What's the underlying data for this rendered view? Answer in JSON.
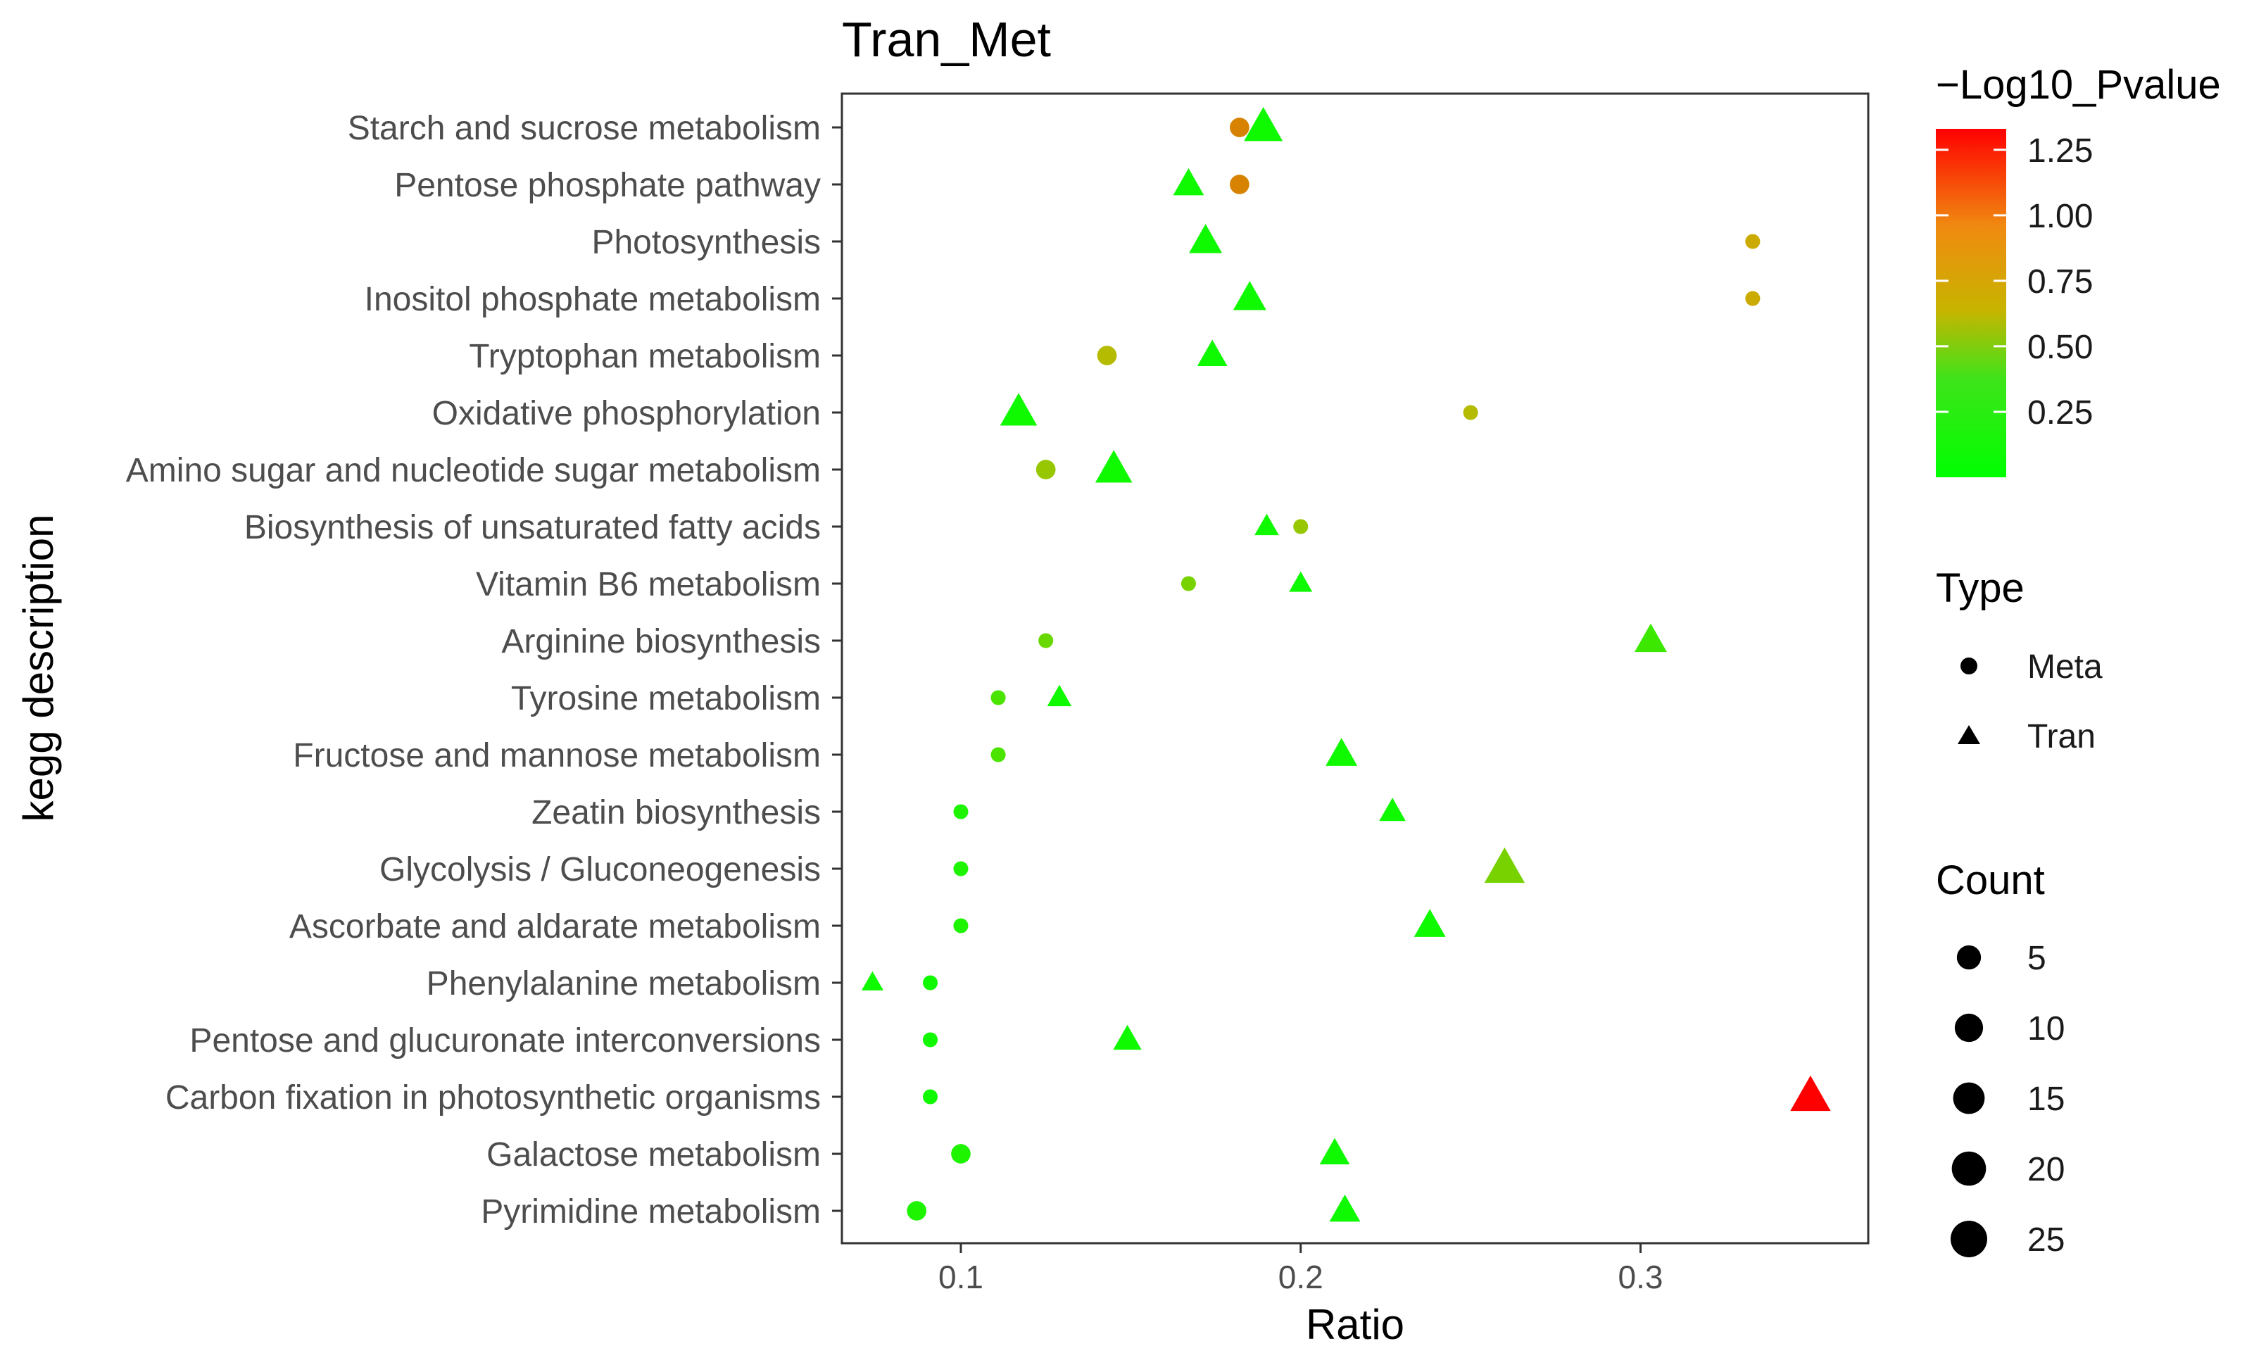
{
  "chart_data": {
    "type": "scatter",
    "title": "Tran_Met",
    "xlabel": "Ratio",
    "ylabel": "kegg description",
    "xlim": [
      0.065,
      0.367
    ],
    "xticks": [
      0.1,
      0.2,
      0.3
    ],
    "xtick_labels": [
      "0.1",
      "0.2",
      "0.3"
    ],
    "grid": false,
    "categories": [
      "Starch and sucrose metabolism",
      "Pentose phosphate pathway",
      "Photosynthesis",
      "Inositol phosphate metabolism",
      "Tryptophan metabolism",
      "Oxidative phosphorylation",
      "Amino sugar and nucleotide sugar metabolism",
      "Biosynthesis of unsaturated fatty acids",
      "Vitamin B6 metabolism",
      "Arginine biosynthesis",
      "Tyrosine metabolism",
      "Fructose and mannose metabolism",
      "Zeatin biosynthesis",
      "Glycolysis / Gluconeogenesis",
      "Ascorbate and aldarate metabolism",
      "Phenylalanine metabolism",
      "Pentose and glucuronate interconversions",
      "Carbon fixation in photosynthetic organisms",
      "Galactose metabolism",
      "Pyrimidine metabolism"
    ],
    "series": [
      {
        "name": "Meta",
        "shape": "circle",
        "points": [
          {
            "category": "Starch and sucrose metabolism",
            "ratio": 0.182,
            "count": 6,
            "neg_log10_pvalue": 0.85
          },
          {
            "category": "Pentose phosphate pathway",
            "ratio": 0.182,
            "count": 6,
            "neg_log10_pvalue": 0.85
          },
          {
            "category": "Photosynthesis",
            "ratio": 0.333,
            "count": 2,
            "neg_log10_pvalue": 0.7
          },
          {
            "category": "Inositol phosphate metabolism",
            "ratio": 0.333,
            "count": 2,
            "neg_log10_pvalue": 0.7
          },
          {
            "category": "Tryptophan metabolism",
            "ratio": 0.143,
            "count": 6,
            "neg_log10_pvalue": 0.6
          },
          {
            "category": "Oxidative phosphorylation",
            "ratio": 0.25,
            "count": 2,
            "neg_log10_pvalue": 0.6
          },
          {
            "category": "Amino sugar and nucleotide sugar metabolism",
            "ratio": 0.125,
            "count": 6,
            "neg_log10_pvalue": 0.5
          },
          {
            "category": "Biosynthesis of unsaturated fatty acids",
            "ratio": 0.2,
            "count": 2,
            "neg_log10_pvalue": 0.5
          },
          {
            "category": "Vitamin B6 metabolism",
            "ratio": 0.167,
            "count": 2,
            "neg_log10_pvalue": 0.4
          },
          {
            "category": "Arginine biosynthesis",
            "ratio": 0.125,
            "count": 2,
            "neg_log10_pvalue": 0.35
          },
          {
            "category": "Tyrosine metabolism",
            "ratio": 0.111,
            "count": 2,
            "neg_log10_pvalue": 0.25
          },
          {
            "category": "Fructose and mannose metabolism",
            "ratio": 0.111,
            "count": 2,
            "neg_log10_pvalue": 0.25
          },
          {
            "category": "Zeatin biosynthesis",
            "ratio": 0.1,
            "count": 2,
            "neg_log10_pvalue": 0.1
          },
          {
            "category": "Glycolysis / Gluconeogenesis",
            "ratio": 0.1,
            "count": 2,
            "neg_log10_pvalue": 0.1
          },
          {
            "category": "Ascorbate and aldarate metabolism",
            "ratio": 0.1,
            "count": 2,
            "neg_log10_pvalue": 0.1
          },
          {
            "category": "Phenylalanine metabolism",
            "ratio": 0.091,
            "count": 2,
            "neg_log10_pvalue": 0.05
          },
          {
            "category": "Pentose and glucuronate interconversions",
            "ratio": 0.091,
            "count": 2,
            "neg_log10_pvalue": 0.05
          },
          {
            "category": "Carbon fixation in photosynthetic organisms",
            "ratio": 0.091,
            "count": 2,
            "neg_log10_pvalue": 0.05
          },
          {
            "category": "Galactose metabolism",
            "ratio": 0.1,
            "count": 6,
            "neg_log10_pvalue": 0.1
          },
          {
            "category": "Pyrimidine metabolism",
            "ratio": 0.087,
            "count": 6,
            "neg_log10_pvalue": 0.1
          }
        ]
      },
      {
        "name": "Tran",
        "shape": "triangle",
        "points": [
          {
            "category": "Starch and sucrose metabolism",
            "ratio": 0.189,
            "count": 25,
            "neg_log10_pvalue": 0.05
          },
          {
            "category": "Pentose phosphate pathway",
            "ratio": 0.167,
            "count": 13,
            "neg_log10_pvalue": 0.05
          },
          {
            "category": "Photosynthesis",
            "ratio": 0.172,
            "count": 16,
            "neg_log10_pvalue": 0.05
          },
          {
            "category": "Inositol phosphate metabolism",
            "ratio": 0.185,
            "count": 16,
            "neg_log10_pvalue": 0.05
          },
          {
            "category": "Tryptophan metabolism",
            "ratio": 0.174,
            "count": 12,
            "neg_log10_pvalue": 0.05
          },
          {
            "category": "Oxidative phosphorylation",
            "ratio": 0.117,
            "count": 22,
            "neg_log10_pvalue": 0.05
          },
          {
            "category": "Amino sugar and nucleotide sugar metabolism",
            "ratio": 0.145,
            "count": 22,
            "neg_log10_pvalue": 0.05
          },
          {
            "category": "Biosynthesis of unsaturated fatty acids",
            "ratio": 0.19,
            "count": 6,
            "neg_log10_pvalue": 0.05
          },
          {
            "category": "Vitamin B6 metabolism",
            "ratio": 0.2,
            "count": 5,
            "neg_log10_pvalue": 0.05
          },
          {
            "category": "Arginine biosynthesis",
            "ratio": 0.303,
            "count": 15,
            "neg_log10_pvalue": 0.2
          },
          {
            "category": "Tyrosine metabolism",
            "ratio": 0.129,
            "count": 6,
            "neg_log10_pvalue": 0.05
          },
          {
            "category": "Fructose and mannose metabolism",
            "ratio": 0.212,
            "count": 14,
            "neg_log10_pvalue": 0.05
          },
          {
            "category": "Zeatin biosynthesis",
            "ratio": 0.227,
            "count": 8,
            "neg_log10_pvalue": 0.05
          },
          {
            "category": "Glycolysis / Gluconeogenesis",
            "ratio": 0.26,
            "count": 28,
            "neg_log10_pvalue": 0.4
          },
          {
            "category": "Ascorbate and aldarate metabolism",
            "ratio": 0.238,
            "count": 14,
            "neg_log10_pvalue": 0.05
          },
          {
            "category": "Phenylalanine metabolism",
            "ratio": 0.074,
            "count": 4,
            "neg_log10_pvalue": 0.05
          },
          {
            "category": "Pentose and glucuronate interconversions",
            "ratio": 0.149,
            "count": 10,
            "neg_log10_pvalue": 0.05
          },
          {
            "category": "Carbon fixation in photosynthetic organisms",
            "ratio": 0.35,
            "count": 28,
            "neg_log10_pvalue": 1.33
          },
          {
            "category": "Galactose metabolism",
            "ratio": 0.21,
            "count": 12,
            "neg_log10_pvalue": 0.05
          },
          {
            "category": "Pyrimidine metabolism",
            "ratio": 0.213,
            "count": 13,
            "neg_log10_pvalue": 0.05
          }
        ]
      }
    ],
    "color_legend": {
      "title": "−Log10_Pvalue",
      "range": [
        0,
        1.33
      ],
      "low_color": "#00ff00",
      "mid_color": "#c8b400",
      "high_color": "#ff0000",
      "ticks": [
        0.25,
        0.5,
        0.75,
        1.0,
        1.25
      ],
      "tick_labels": [
        "0.25",
        "0.50",
        "0.75",
        "1.00",
        "1.25"
      ]
    },
    "type_legend": {
      "title": "Type",
      "items": [
        {
          "label": "Meta",
          "shape": "circle"
        },
        {
          "label": "Tran",
          "shape": "triangle"
        }
      ]
    },
    "size_legend": {
      "title": "Count",
      "items": [
        {
          "label": "5",
          "count": 5
        },
        {
          "label": "10",
          "count": 10
        },
        {
          "label": "15",
          "count": 15
        },
        {
          "label": "20",
          "count": 20
        },
        {
          "label": "25",
          "count": 25
        }
      ]
    }
  }
}
